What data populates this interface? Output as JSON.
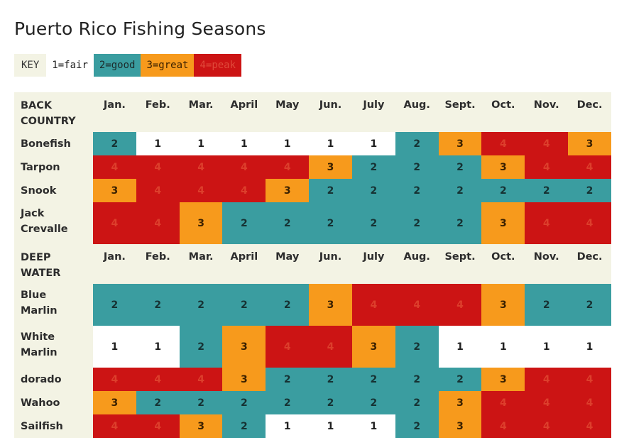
{
  "title": "Puerto Rico Fishing Seasons",
  "key": {
    "label": "KEY",
    "items": [
      "1=fair",
      "2=good",
      "3=great",
      "4=peak"
    ]
  },
  "colors": {
    "1": "#ffffff",
    "2": "#3a9da0",
    "3": "#f79a1c",
    "4": "#cc1414",
    "header_bg": "#f3f3e4"
  },
  "chart_data": {
    "type": "heatmap",
    "title": "Puerto Rico Fishing Seasons",
    "scale": {
      "1": "fair",
      "2": "good",
      "3": "great",
      "4": "peak"
    },
    "sections": [
      {
        "header": "BACK COUNTRY",
        "header_lines": [
          "BACK",
          "COUNTRY"
        ],
        "months": [
          "Jan.",
          "Feb.",
          "Mar.",
          "April",
          "May",
          "Jun.",
          "July",
          "Aug.",
          "Sept.",
          "Oct.",
          "Nov.",
          "Dec."
        ],
        "rows": [
          {
            "name": "Bonefish",
            "name_lines": [
              "Bonefish"
            ],
            "values": [
              2,
              1,
              1,
              1,
              1,
              1,
              1,
              2,
              3,
              4,
              4,
              3
            ]
          },
          {
            "name": "Tarpon",
            "name_lines": [
              "Tarpon"
            ],
            "values": [
              4,
              4,
              4,
              4,
              4,
              3,
              2,
              2,
              2,
              3,
              4,
              4
            ]
          },
          {
            "name": "Snook",
            "name_lines": [
              "Snook"
            ],
            "values": [
              3,
              4,
              4,
              4,
              3,
              2,
              2,
              2,
              2,
              2,
              2,
              2
            ]
          },
          {
            "name": "Jack Crevalle",
            "name_lines": [
              "Jack",
              "Crevalle"
            ],
            "values": [
              4,
              4,
              3,
              2,
              2,
              2,
              2,
              2,
              2,
              3,
              4,
              4
            ]
          }
        ]
      },
      {
        "header": "DEEP WATER",
        "header_lines": [
          "DEEP",
          "WATER"
        ],
        "months": [
          "Jan.",
          "Feb.",
          "Mar.",
          "April",
          "May",
          "Jun.",
          "July",
          "Aug.",
          "Sept.",
          "Oct.",
          "Nov.",
          "Dec."
        ],
        "rows": [
          {
            "name": "Blue Marlin",
            "name_lines": [
              "Blue",
              "Marlin"
            ],
            "values": [
              2,
              2,
              2,
              2,
              2,
              3,
              4,
              4,
              4,
              3,
              2,
              2
            ]
          },
          {
            "name": "White Marlin",
            "name_lines": [
              "White",
              "Marlin"
            ],
            "values": [
              1,
              1,
              2,
              3,
              4,
              4,
              3,
              2,
              1,
              1,
              1,
              1
            ]
          },
          {
            "name": "dorado",
            "name_lines": [
              "dorado"
            ],
            "values": [
              4,
              4,
              4,
              3,
              2,
              2,
              2,
              2,
              2,
              3,
              4,
              4
            ]
          },
          {
            "name": "Wahoo",
            "name_lines": [
              "Wahoo"
            ],
            "values": [
              3,
              2,
              2,
              2,
              2,
              2,
              2,
              2,
              3,
              4,
              4,
              4
            ]
          },
          {
            "name": "Sailfish",
            "name_lines": [
              "Sailfish"
            ],
            "values": [
              4,
              4,
              3,
              2,
              1,
              1,
              1,
              2,
              3,
              4,
              4,
              4
            ]
          }
        ]
      }
    ]
  }
}
